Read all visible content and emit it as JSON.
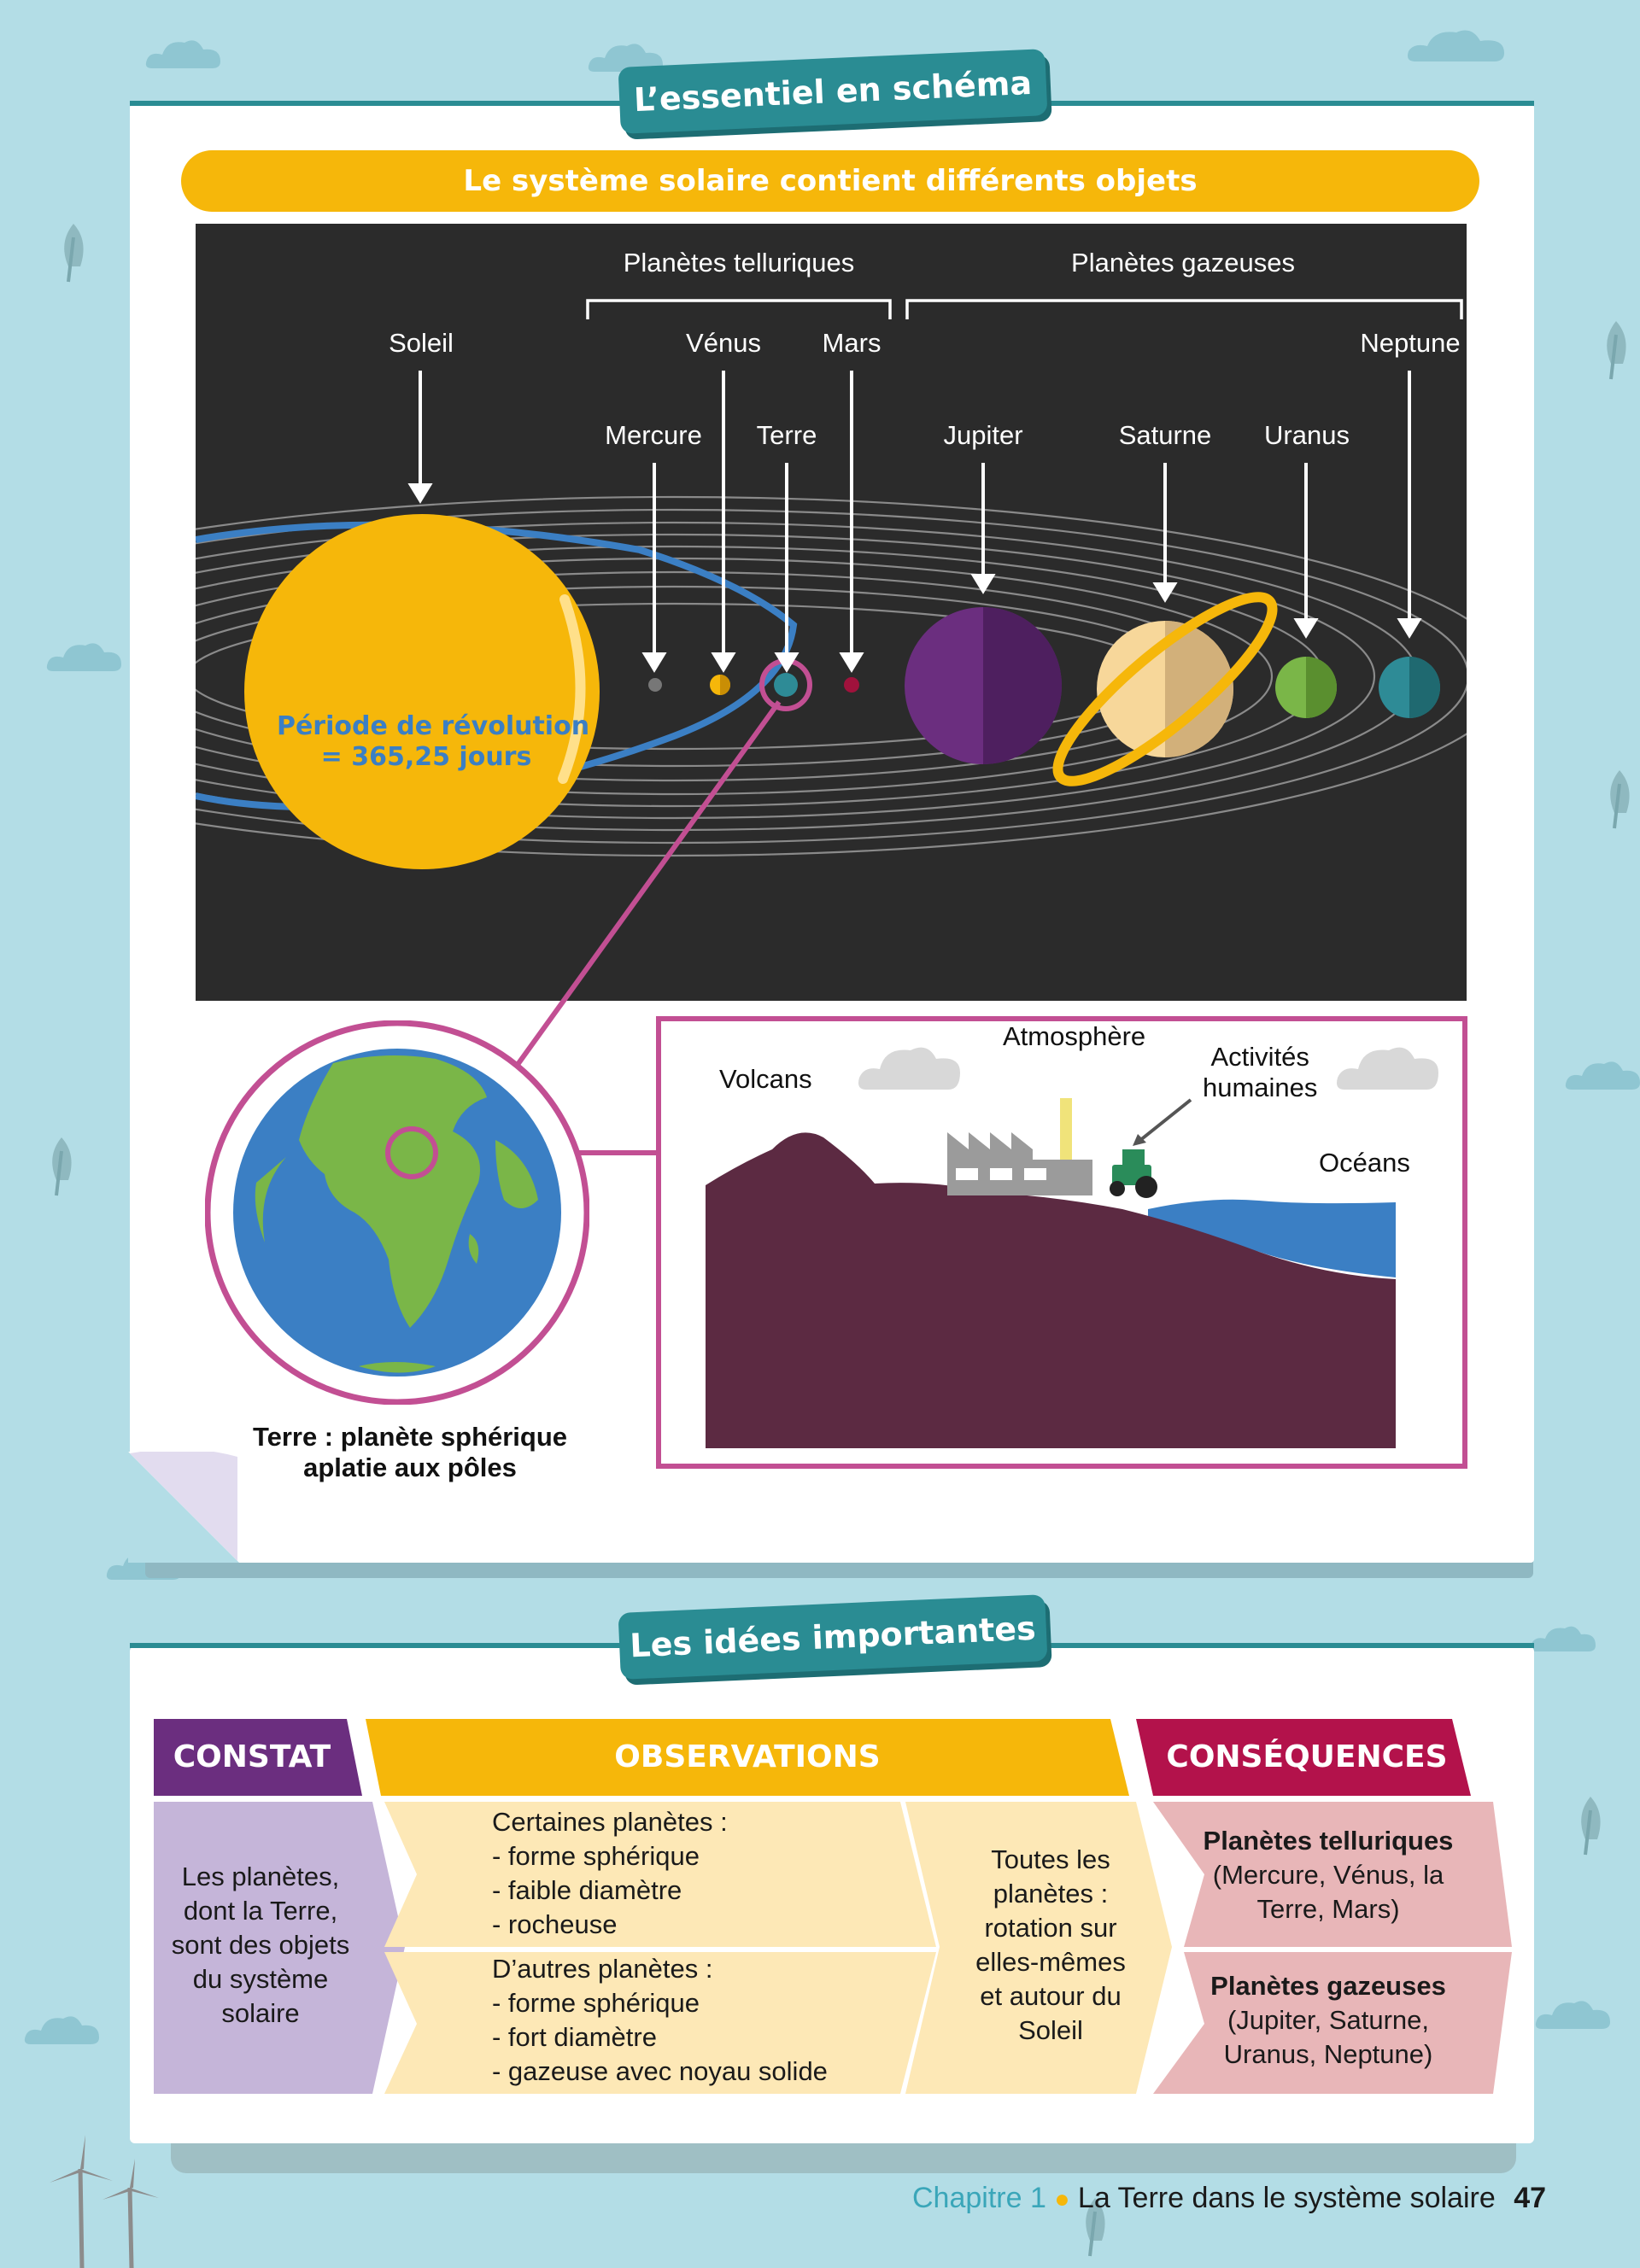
{
  "schema": {
    "tab_title": "L’essentiel en schéma",
    "banner": "Le système solaire contient différents objets",
    "groups": {
      "telluric": "Planètes telluriques",
      "gaseous": "Planètes gazeuses"
    },
    "bodies": {
      "sun": "Soleil",
      "venus": "Vénus",
      "mars": "Mars",
      "neptune": "Neptune",
      "mercury": "Mercure",
      "earth": "Terre",
      "jupiter": "Jupiter",
      "saturn": "Saturne",
      "uranus": "Uranus"
    },
    "revolution_line1": "Période de révolution",
    "revolution_line2": "= 365,25 jours",
    "earth_caption_line1": "Terre : planète sphérique",
    "earth_caption_line2": "aplatie aux pôles",
    "earth_features": {
      "atmosphere": "Atmosphère",
      "volcanoes": "Volcans",
      "human_line1": "Activités",
      "human_line2": "humaines",
      "oceans": "Océans"
    },
    "colors": {
      "sun": "#f6b70a",
      "orbit_earth": "#3b7fc4",
      "pink": "#c24f93",
      "jupiter": "#6b2e7f",
      "uranus": "#7ab648",
      "neptune": "#2e8b96",
      "ground": "#5c2a42"
    }
  },
  "ideas": {
    "tab_title": "Les idées importantes",
    "headers": {
      "constat": "CONSTAT",
      "observations": "OBSERVATIONS",
      "consequences": "CONSÉQUENCES"
    },
    "constat_lines": [
      "Les planètes,",
      "dont la Terre,",
      "sont des objets",
      "du système",
      "solaire"
    ],
    "obs_top_lines": [
      "Certaines planètes :",
      "- forme sphérique",
      "- faible diamètre",
      "- rocheuse"
    ],
    "obs_bottom_lines": [
      "D’autres planètes :",
      "- forme sphérique",
      "- fort diamètre",
      "- gazeuse avec noyau solide"
    ],
    "obs_right_lines": [
      "Toutes les",
      "planètes :",
      "rotation sur",
      "elles-mêmes",
      "et autour du",
      "Soleil"
    ],
    "cons_top_title": "Planètes telluriques",
    "cons_top_lines": [
      "(Mercure, Vénus, la",
      "Terre, Mars)"
    ],
    "cons_bottom_title": "Planètes gazeuses",
    "cons_bottom_lines": [
      "(Jupiter, Saturne,",
      "Uranus, Neptune)"
    ]
  },
  "footer": {
    "chapter": "Chapitre 1",
    "title": "La Terre dans le système solaire",
    "page": "47"
  }
}
